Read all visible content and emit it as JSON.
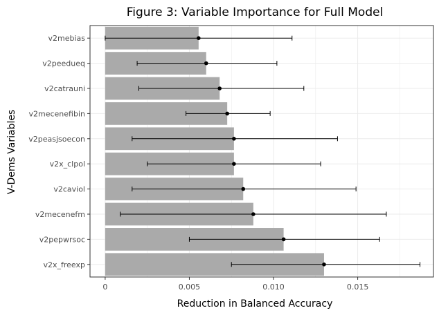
{
  "chart_data": {
    "type": "bar",
    "orientation": "horizontal",
    "title": "Figure 3: Variable Importance for Full Model",
    "xlabel": "Reduction in Balanced Accuracy",
    "ylabel": "V-Dems Variables",
    "xlim": [
      -0.0009,
      0.0195
    ],
    "xticks": [
      0,
      0.005,
      0.01,
      0.015
    ],
    "xtick_labels": [
      "0",
      "0.005",
      "0.010",
      "0.015"
    ],
    "grid": true,
    "categories": [
      "v2mebias",
      "v2peedueq",
      "v2catrauni",
      "v2mecenefibin",
      "v2peasjsoecon",
      "v2x_clpol",
      "v2caviol",
      "v2mecenefm",
      "v2pepwrsoc",
      "v2x_freexp"
    ],
    "values": [
      0.00555,
      0.006,
      0.0068,
      0.00725,
      0.00765,
      0.00765,
      0.0082,
      0.0088,
      0.0106,
      0.013
    ],
    "points": [
      0.00555,
      0.006,
      0.0068,
      0.00725,
      0.00765,
      0.00765,
      0.0082,
      0.0088,
      0.0106,
      0.013
    ],
    "error_low": [
      0.0,
      0.0019,
      0.002,
      0.0048,
      0.0016,
      0.0025,
      0.0016,
      0.0009,
      0.005,
      0.0075
    ],
    "error_high": [
      0.0111,
      0.0102,
      0.0118,
      0.0098,
      0.0138,
      0.0128,
      0.0149,
      0.0167,
      0.0163,
      0.0187
    ],
    "colors": {
      "bar": "#aaaaaa",
      "point": "#000000",
      "errorbar": "#000000",
      "grid": "#ebebeb",
      "panel_border": "#333333",
      "background": "#ffffff"
    }
  }
}
